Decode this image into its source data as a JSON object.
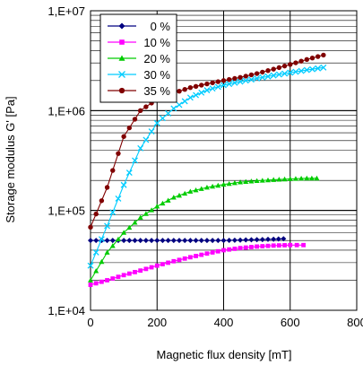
{
  "chart_data": {
    "type": "scatter",
    "xlabel": "Magnetic flux density [mT]",
    "ylabel": "Storage modulus G' [Pa]",
    "xlim": [
      0,
      800
    ],
    "ylim": [
      10000,
      10000000
    ],
    "y_scale": "log",
    "x_ticks": [
      0,
      200,
      400,
      600,
      800
    ],
    "x_tick_labels": [
      "0",
      "200",
      "400",
      "600",
      "800"
    ],
    "y_ticks": [
      10000,
      100000,
      1000000,
      10000000
    ],
    "y_tick_labels": [
      "1,E+04",
      "1,E+05",
      "1,E+06",
      "1,E+07"
    ],
    "grid": true,
    "legend_position": "top-left",
    "series": [
      {
        "name": "0 %",
        "color": "#000080",
        "marker": "diamond",
        "x": [
          0,
          50,
          100,
          150,
          200,
          250,
          300,
          350,
          400,
          450,
          500,
          550,
          580
        ],
        "y": [
          50000,
          50000,
          50000,
          50000,
          50000,
          50000,
          50000,
          50000,
          50000,
          50500,
          51000,
          51500,
          52000
        ]
      },
      {
        "name": "10 %",
        "color": "#ff00ff",
        "marker": "square",
        "x": [
          0,
          50,
          100,
          150,
          200,
          250,
          300,
          350,
          400,
          450,
          500,
          550,
          600,
          640
        ],
        "y": [
          18000,
          20000,
          22500,
          25000,
          28000,
          31000,
          34000,
          37000,
          40000,
          42000,
          43500,
          44500,
          45000,
          45000
        ]
      },
      {
        "name": "20 %",
        "color": "#00cc00",
        "marker": "triangle",
        "x": [
          0,
          50,
          100,
          150,
          200,
          250,
          300,
          350,
          400,
          450,
          500,
          550,
          600,
          650,
          680
        ],
        "y": [
          20000,
          38000,
          60000,
          85000,
          110000,
          135000,
          155000,
          170000,
          182000,
          192000,
          198000,
          203000,
          207000,
          210000,
          210000
        ]
      },
      {
        "name": "30 %",
        "color": "#00ccff",
        "marker": "x",
        "x": [
          0,
          50,
          100,
          150,
          200,
          250,
          300,
          350,
          400,
          450,
          500,
          550,
          600,
          650,
          700
        ],
        "y": [
          28000,
          70000,
          180000,
          420000,
          750000,
          1050000,
          1350000,
          1600000,
          1800000,
          1950000,
          2100000,
          2250000,
          2400000,
          2550000,
          2700000
        ]
      },
      {
        "name": "35 %",
        "color": "#800000",
        "marker": "circle",
        "x": [
          0,
          50,
          100,
          150,
          200,
          250,
          300,
          350,
          400,
          450,
          500,
          550,
          600,
          650,
          700
        ],
        "y": [
          68000,
          170000,
          550000,
          1000000,
          1300000,
          1500000,
          1700000,
          1850000,
          2000000,
          2150000,
          2350000,
          2600000,
          2900000,
          3250000,
          3600000
        ]
      }
    ]
  }
}
